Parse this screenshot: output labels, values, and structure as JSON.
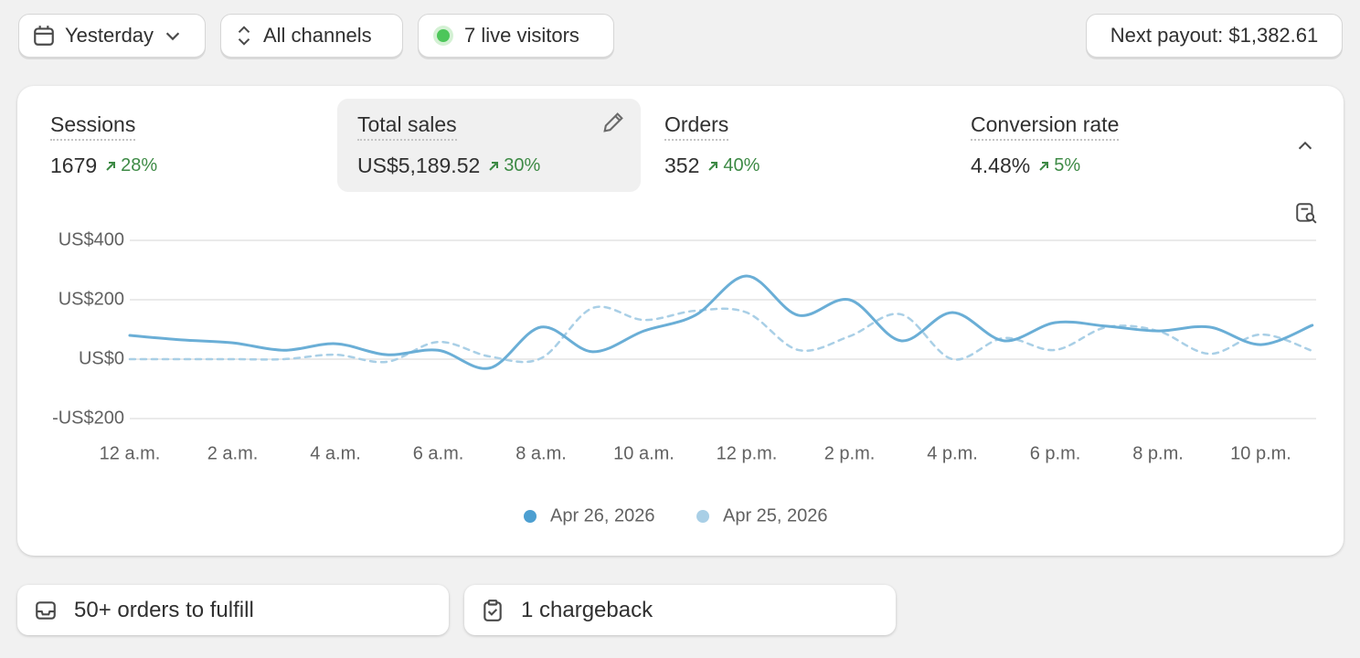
{
  "toolbar": {
    "date_filter": "Yesterday",
    "channel_filter": "All channels",
    "live_visitors": "7 live visitors",
    "payout": "Next payout: $1,382.61"
  },
  "metrics": [
    {
      "label": "Sessions",
      "value": "1679",
      "change": "28%"
    },
    {
      "label": "Total sales",
      "value": "US$5,189.52",
      "change": "30%"
    },
    {
      "label": "Orders",
      "value": "352",
      "change": "40%"
    },
    {
      "label": "Conversion rate",
      "value": "4.48%",
      "change": "5%"
    }
  ],
  "chart_data": {
    "type": "line",
    "categories": [
      "12 a.m.",
      null,
      "2 a.m.",
      null,
      "4 a.m.",
      null,
      "6 a.m.",
      null,
      "8 a.m.",
      null,
      "10 a.m.",
      null,
      "12 p.m.",
      null,
      "2 p.m.",
      null,
      "4 p.m.",
      null,
      "6 p.m.",
      null,
      "8 p.m.",
      null,
      "10 p.m.",
      null
    ],
    "series": [
      {
        "name": "Apr 26, 2026",
        "color": "#6aaed6",
        "values": [
          80,
          65,
          55,
          30,
          52,
          15,
          30,
          -30,
          108,
          25,
          95,
          148,
          280,
          148,
          200,
          62,
          157,
          62,
          123,
          111,
          95,
          108,
          49,
          114
        ]
      },
      {
        "name": "Apr 25, 2026",
        "color": "#a9cfe6",
        "values": [
          0,
          0,
          0,
          0,
          15,
          -9,
          58,
          9,
          3,
          172,
          132,
          163,
          157,
          31,
          77,
          151,
          0,
          71,
          31,
          108,
          95,
          18,
          83,
          28
        ]
      }
    ],
    "ylim": [
      -200,
      400
    ],
    "yticks": [
      {
        "value": -200,
        "label": "-US$200"
      },
      {
        "value": 0,
        "label": "US$0"
      },
      {
        "value": 200,
        "label": "US$200"
      },
      {
        "value": 400,
        "label": "US$400"
      }
    ],
    "grid": true
  },
  "tasks": [
    "50+ orders to fulfill",
    "1 chargeback"
  ]
}
